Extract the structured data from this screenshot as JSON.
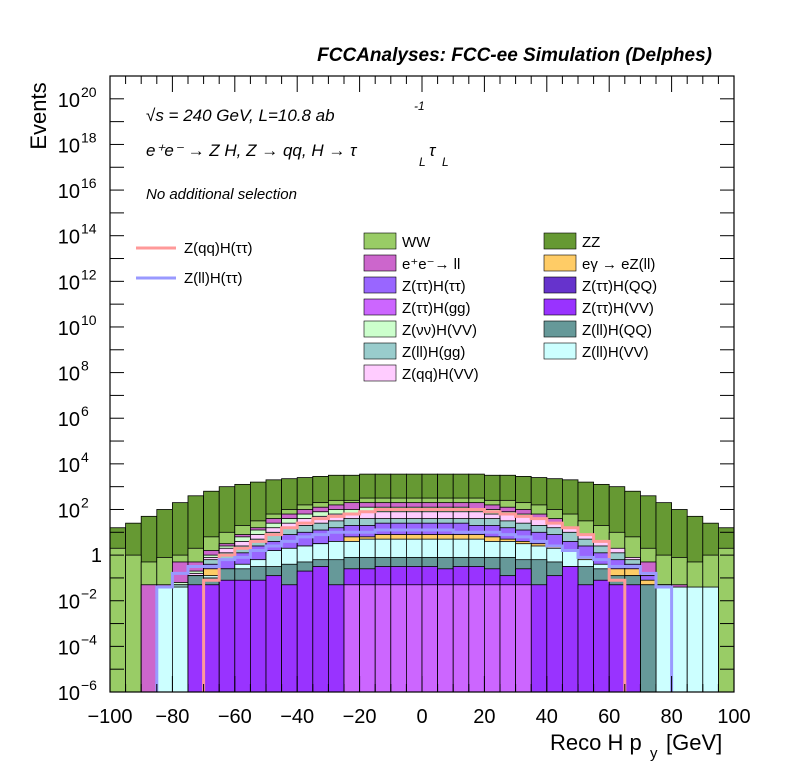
{
  "header": {
    "title": "FCCAnalyses: FCC-ee Simulation (Delphes)"
  },
  "annotations": {
    "line1": "√s = 240 GeV, L=10.8 ab",
    "line1_sup": "-1",
    "line2": "e⁺e⁻ → Z H, Z → qq, H → τ",
    "line2_sub_a": "L",
    "line2_tau": "τ",
    "line2_sub_b": "L",
    "line3": "No additional selection"
  },
  "colors": {
    "WW": "#99cc66",
    "ZZ": "#669933",
    "ee_ll": "#cc66cc",
    "egamma": "#ffcc66",
    "Ztautau_Htautau": "#9966ff",
    "Ztautau_HQQ": "#6633cc",
    "Ztautau_Hgg": "#cc66ff",
    "Ztautau_HVV": "#9933ff",
    "Znunu_HVV": "#ccffcc",
    "Zll_HQQ": "#669999",
    "Zll_Hgg": "#99cccc",
    "Zll_HVV": "#ccffff",
    "Zqq_HVV": "#ffccff",
    "sig_qq": "#ff9999",
    "sig_ll": "#9999ff"
  },
  "chart_data": {
    "type": "bar",
    "stacked": true,
    "histtype": "step-filled",
    "xlabel": "Reco H p",
    "xlabel_sub": "y",
    "xlabel_unit": "[GeV]",
    "ylabel": "Events",
    "xlim": [
      -100,
      100
    ],
    "ylim": [
      1e-06,
      1e+21
    ],
    "yscale": "log",
    "x_ticks": [
      "−100",
      "−80",
      "−60",
      "−40",
      "−20",
      "0",
      "20",
      "40",
      "60",
      "80",
      "100"
    ],
    "y_ticks": [
      {
        "base": "10",
        "exp": "−6",
        "value": 1e-06
      },
      {
        "base": "10",
        "exp": "−4",
        "value": 0.0001
      },
      {
        "base": "10",
        "exp": "−2",
        "value": 0.01
      },
      {
        "base": "1",
        "exp": "",
        "value": 1
      },
      {
        "base": "10",
        "exp": "2",
        "value": 100.0
      },
      {
        "base": "10",
        "exp": "4",
        "value": 10000.0
      },
      {
        "base": "10",
        "exp": "6",
        "value": 1000000.0
      },
      {
        "base": "10",
        "exp": "8",
        "value": 100000000.0
      },
      {
        "base": "10",
        "exp": "10",
        "value": 10000000000.0
      },
      {
        "base": "10",
        "exp": "12",
        "value": 1000000000000.0
      },
      {
        "base": "10",
        "exp": "14",
        "value": 100000000000000.0
      },
      {
        "base": "10",
        "exp": "16",
        "value": 1e+16
      },
      {
        "base": "10",
        "exp": "18",
        "value": 1e+18
      },
      {
        "base": "10",
        "exp": "20",
        "value": 1e+20
      }
    ],
    "bin_width": 5,
    "x": [
      -97.5,
      -92.5,
      -87.5,
      -82.5,
      -77.5,
      -72.5,
      -67.5,
      -62.5,
      -57.5,
      -52.5,
      -47.5,
      -42.5,
      -37.5,
      -32.5,
      -27.5,
      -22.5,
      -17.5,
      -12.5,
      -7.5,
      -2.5,
      2.5,
      7.5,
      12.5,
      17.5,
      22.5,
      27.5,
      32.5,
      37.5,
      42.5,
      47.5,
      52.5,
      57.5,
      62.5,
      67.5,
      72.5,
      77.5,
      82.5,
      87.5,
      92.5,
      97.5
    ],
    "legend_backgrounds": [
      {
        "key": "WW",
        "label": "WW"
      },
      {
        "key": "ZZ",
        "label": "ZZ"
      },
      {
        "key": "ee_ll",
        "label": "e⁺e⁻→ ll"
      },
      {
        "key": "egamma",
        "label": "eγ → eZ(ll)"
      },
      {
        "key": "Ztautau_Htautau",
        "label": "Z(ττ)H(ττ)"
      },
      {
        "key": "Ztautau_HQQ",
        "label": "Z(ττ)H(QQ)"
      },
      {
        "key": "Ztautau_Hgg",
        "label": "Z(ττ)H(gg)"
      },
      {
        "key": "Ztautau_HVV",
        "label": "Z(ττ)H(VV)"
      },
      {
        "key": "Znunu_HVV",
        "label": "Z(νν)H(VV)"
      },
      {
        "key": "Zll_HQQ",
        "label": "Z(ll)H(QQ)"
      },
      {
        "key": "Zll_Hgg",
        "label": "Z(ll)H(gg)"
      },
      {
        "key": "Zll_HVV",
        "label": "Z(ll)H(VV)"
      },
      {
        "key": "Zqq_HVV",
        "label": "Z(qq)H(VV)"
      }
    ],
    "legend_signals": [
      {
        "key": "sig_qq",
        "label": "Z(qq)H(ττ)"
      },
      {
        "key": "sig_ll",
        "label": "Z(ll)H(ττ)"
      }
    ],
    "stack_order": [
      "Ztautau_Hgg",
      "Ztautau_HVV",
      "Zll_HQQ",
      "Zll_HVV",
      "egamma",
      "Ztautau_Htautau",
      "Zll_Hgg",
      "Zqq_HVV",
      "Znunu_HVV",
      "ee_ll",
      "WW",
      "ZZ"
    ],
    "stack_tops_log10": {
      "Ztautau_Hgg": [
        null,
        null,
        null,
        null,
        null,
        null,
        null,
        null,
        null,
        null,
        null,
        null,
        null,
        null,
        null,
        -1.3,
        -1.3,
        -1.3,
        -1.3,
        -1.3,
        -1.3,
        -1.3,
        -1.3,
        -1.3,
        -1.3,
        -1.3,
        -1.3,
        null,
        null,
        null,
        null,
        null,
        null,
        null,
        null,
        null,
        null,
        null,
        null,
        null
      ],
      "Ztautau_HVV": [
        null,
        null,
        null,
        null,
        null,
        -1.3,
        -1.3,
        -1.1,
        -1.1,
        -1.1,
        -0.9,
        -1.3,
        -0.7,
        -0.5,
        -1.3,
        -0.6,
        -0.6,
        -0.5,
        -0.5,
        -0.5,
        -0.5,
        -0.6,
        -0.5,
        -0.5,
        -0.6,
        -0.9,
        -0.6,
        -1.3,
        -0.9,
        -0.5,
        -1.3,
        -1.1,
        -1.3,
        -1.3,
        null,
        null,
        null,
        null,
        null,
        null
      ],
      "Zll_HQQ": [
        null,
        null,
        null,
        null,
        null,
        -0.9,
        -1.0,
        -0.6,
        -0.6,
        -0.5,
        -0.5,
        -0.4,
        -0.3,
        -0.2,
        -0.2,
        -0.1,
        -0.1,
        -0.1,
        -0.1,
        -0.1,
        -0.1,
        -0.1,
        -0.1,
        -0.1,
        -0.1,
        -0.1,
        -0.2,
        -0.2,
        -0.3,
        -0.5,
        -0.5,
        -0.6,
        -0.9,
        -0.9,
        -1.3,
        null,
        null,
        null,
        null,
        null
      ],
      "Zll_HVV": [
        null,
        null,
        null,
        -1.4,
        -1.4,
        -1.3,
        -0.9,
        -1.0,
        -0.4,
        -0.2,
        0.2,
        0.3,
        0.4,
        0.5,
        0.6,
        0.6,
        0.7,
        0.7,
        0.7,
        0.7,
        0.7,
        0.7,
        0.7,
        0.7,
        0.6,
        0.6,
        0.5,
        0.4,
        0.3,
        0.2,
        -0.2,
        -0.4,
        -1.0,
        -0.9,
        -1.3,
        -1.4,
        -1.4,
        -1.4,
        -1.4,
        null
      ],
      "egamma": [
        null,
        null,
        null,
        null,
        null,
        -1.1,
        -0.6,
        -0.6,
        -0.6,
        -0.5,
        -0.1,
        0.2,
        0.4,
        0.5,
        0.6,
        0.8,
        0.8,
        0.9,
        0.9,
        0.9,
        0.9,
        0.9,
        0.9,
        0.9,
        0.8,
        0.7,
        0.6,
        0.5,
        0.4,
        0.2,
        -0.1,
        -0.5,
        -0.6,
        -0.6,
        -1.1,
        null,
        null,
        null,
        null,
        null
      ],
      "Ztautau_Htautau": [
        null,
        null,
        null,
        null,
        null,
        -0.9,
        -0.4,
        -0.2,
        0.1,
        0.4,
        0.6,
        0.9,
        1.0,
        1.1,
        1.2,
        1.3,
        1.3,
        1.4,
        1.4,
        1.4,
        1.4,
        1.4,
        1.4,
        1.3,
        1.3,
        1.2,
        1.1,
        1.0,
        0.9,
        0.6,
        0.4,
        0.1,
        -0.2,
        -0.4,
        -0.9,
        null,
        null,
        null,
        null,
        null
      ],
      "Zll_Hgg": [
        null,
        null,
        null,
        null,
        -1.3,
        -0.9,
        -0.2,
        0.1,
        0.4,
        0.7,
        1.0,
        1.2,
        1.3,
        1.4,
        1.5,
        1.6,
        1.6,
        1.6,
        1.6,
        1.6,
        1.6,
        1.6,
        1.6,
        1.6,
        1.6,
        1.5,
        1.4,
        1.3,
        1.2,
        1.0,
        0.7,
        0.4,
        0.1,
        -0.2,
        -0.9,
        -1.3,
        null,
        null,
        null,
        null
      ],
      "Zqq_HVV": [
        null,
        null,
        null,
        null,
        -1.3,
        -0.8,
        -0.1,
        0.3,
        0.6,
        0.9,
        1.2,
        1.4,
        1.6,
        1.7,
        1.8,
        1.8,
        1.9,
        1.9,
        1.9,
        1.9,
        1.9,
        1.9,
        1.9,
        1.9,
        1.8,
        1.8,
        1.7,
        1.6,
        1.4,
        1.2,
        0.9,
        0.6,
        0.3,
        -0.1,
        -0.8,
        -1.3,
        null,
        null,
        null,
        null
      ],
      "Znunu_HVV": [
        null,
        null,
        null,
        null,
        -1.2,
        -0.7,
        0.0,
        0.4,
        0.8,
        1.1,
        1.4,
        1.6,
        1.8,
        1.9,
        2.0,
        2.0,
        2.1,
        2.1,
        2.1,
        2.1,
        2.1,
        2.1,
        2.1,
        2.0,
        2.0,
        1.9,
        1.8,
        1.6,
        1.4,
        1.1,
        0.8,
        0.4,
        0.0,
        -0.7,
        -1.2,
        null,
        null,
        null,
        null,
        null
      ],
      "ee_ll": [
        null,
        null,
        -1.3,
        -1.3,
        -0.3,
        -0.3,
        0.2,
        0.5,
        0.9,
        1.2,
        1.6,
        1.8,
        2.0,
        2.1,
        2.2,
        2.3,
        2.3,
        2.3,
        2.3,
        2.3,
        2.3,
        2.3,
        2.3,
        2.3,
        2.2,
        2.1,
        2.0,
        1.8,
        1.6,
        1.2,
        0.9,
        0.5,
        0.2,
        -0.3,
        -0.3,
        -1.3,
        -1.3,
        null,
        null,
        null
      ],
      "WW": [
        0.3,
        0.0,
        -0.3,
        -0.1,
        0.0,
        0.3,
        0.8,
        1.0,
        1.3,
        1.5,
        1.8,
        2.0,
        2.2,
        2.3,
        2.4,
        2.4,
        2.5,
        2.5,
        2.5,
        2.5,
        2.5,
        2.5,
        2.5,
        2.5,
        2.4,
        2.4,
        2.3,
        2.2,
        2.0,
        1.8,
        1.5,
        1.3,
        1.0,
        0.8,
        0.3,
        0.0,
        -0.1,
        -0.3,
        0.0,
        0.3
      ],
      "ZZ": [
        1.2,
        1.4,
        1.7,
        2.0,
        2.3,
        2.6,
        2.8,
        3.0,
        3.1,
        3.2,
        3.3,
        3.35,
        3.4,
        3.45,
        3.5,
        3.5,
        3.55,
        3.55,
        3.55,
        3.55,
        3.55,
        3.55,
        3.55,
        3.55,
        3.5,
        3.5,
        3.45,
        3.4,
        3.35,
        3.3,
        3.2,
        3.1,
        3.0,
        2.8,
        2.6,
        2.3,
        2.0,
        1.7,
        1.4,
        1.2
      ]
    },
    "signals_log10": {
      "sig_qq": [
        null,
        null,
        null,
        null,
        null,
        null,
        -1.1,
        0.0,
        0.3,
        0.6,
        0.9,
        1.2,
        1.4,
        1.6,
        1.7,
        1.8,
        1.9,
        2.0,
        2.0,
        2.0,
        2.0,
        2.0,
        2.0,
        2.0,
        1.9,
        1.8,
        1.7,
        1.6,
        1.4,
        1.2,
        0.9,
        0.6,
        -1.1,
        null,
        null,
        null,
        null,
        null,
        null,
        null
      ],
      "sig_ll": [
        null,
        null,
        null,
        -1.4,
        -0.8,
        -0.5,
        -0.5,
        -0.2,
        -0.1,
        0.2,
        0.4,
        0.6,
        0.8,
        0.9,
        1.0,
        1.0,
        1.0,
        1.1,
        1.1,
        1.1,
        1.1,
        1.1,
        1.0,
        1.0,
        1.0,
        0.9,
        0.8,
        0.6,
        0.4,
        0.2,
        -0.1,
        -0.2,
        -0.5,
        -0.5,
        -0.8,
        -1.4,
        null,
        null,
        null,
        null
      ]
    }
  }
}
